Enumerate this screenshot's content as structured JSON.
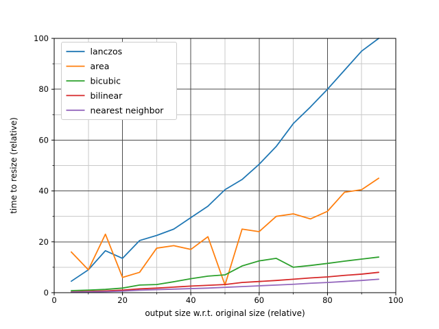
{
  "figure": {
    "background": "#ffffff",
    "spine_color": "#000000",
    "grid_major_color": "#4a4a4a",
    "grid_minor_color": "#c9c9c9",
    "legend_border_color": "#cccccc",
    "legend_background": "#ffffff"
  },
  "chart_data": {
    "type": "line",
    "title": "",
    "xlabel": "output size w.r.t. original size (relative)",
    "ylabel": "time to resize (relative)",
    "xlim": [
      0,
      100
    ],
    "ylim": [
      0,
      100
    ],
    "xticks": [
      0,
      20,
      40,
      60,
      80,
      100
    ],
    "yticks": [
      0,
      20,
      40,
      60,
      80,
      100
    ],
    "minor_tick_step": 10,
    "grid": "both",
    "legend_position": "upper-left",
    "x": [
      5,
      10,
      15,
      20,
      25,
      30,
      35,
      40,
      45,
      50,
      55,
      60,
      65,
      70,
      75,
      80,
      85,
      90,
      95
    ],
    "series": [
      {
        "name": "lanczos",
        "color": "#1f77b4",
        "values": [
          4.5,
          9,
          16.5,
          13.5,
          20.5,
          22.5,
          25,
          29.5,
          34,
          40.5,
          44.5,
          50.5,
          57.5,
          66.5,
          73,
          80,
          87.5,
          95,
          100
        ]
      },
      {
        "name": "area",
        "color": "#ff7f0e",
        "values": [
          16,
          9,
          23,
          6,
          8,
          17.5,
          18.5,
          17,
          22,
          3,
          25,
          24,
          30,
          31,
          29,
          32,
          39.5,
          40.5,
          45
        ]
      },
      {
        "name": "bicubic",
        "color": "#2ca02c",
        "values": [
          0.8,
          1,
          1.3,
          1.8,
          3,
          3.2,
          4.3,
          5.5,
          6.5,
          7,
          10.5,
          12.5,
          13.5,
          10,
          10.7,
          11.5,
          12.4,
          13.2,
          14
        ]
      },
      {
        "name": "bilinear",
        "color": "#d62728",
        "values": [
          0.3,
          0.5,
          0.7,
          1,
          1.5,
          1.8,
          2.2,
          2.6,
          2.9,
          3.2,
          4,
          4.4,
          4.8,
          5.3,
          5.8,
          6.2,
          6.8,
          7.3,
          8
        ]
      },
      {
        "name": "nearest neighbor",
        "color": "#9467bd",
        "values": [
          0.2,
          0.3,
          0.4,
          0.6,
          1,
          1.2,
          1.4,
          1.6,
          1.8,
          2.1,
          2.4,
          2.7,
          3,
          3.3,
          3.7,
          4,
          4.4,
          4.8,
          5.3
        ]
      }
    ]
  }
}
